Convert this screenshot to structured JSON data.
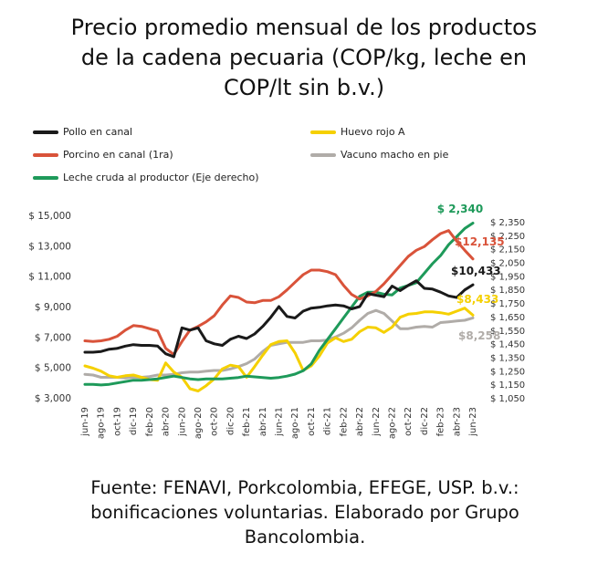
{
  "title_lines": [
    "Precio promedio mensual de los productos",
    "de la cadena pecuaria (COP/kg, leche en",
    "COP/lt sin b.v.)"
  ],
  "source": {
    "label": "Fuente:",
    "lines": [
      " FENAVI, Porkcolombia, EFEGE, USP. b.v.:",
      "bonificaciones voluntarias. Elaborado por Grupo",
      "Bancolombia."
    ]
  },
  "colors": {
    "pollo": "#1a1a1a",
    "huevo": "#f5d000",
    "porcino": "#d9533a",
    "vacuno": "#b0aca8",
    "leche": "#1e9a5a"
  },
  "chart_data": {
    "type": "line",
    "x": [
      "jun-19",
      "jul-19",
      "ago-19",
      "sep-19",
      "oct-19",
      "nov-19",
      "dic-19",
      "ene-20",
      "feb-20",
      "mar-20",
      "abr-20",
      "may-20",
      "jun-20",
      "jul-20",
      "ago-20",
      "sep-20",
      "oct-20",
      "nov-20",
      "dic-20",
      "ene-21",
      "feb-21",
      "mar-21",
      "abr-21",
      "may-21",
      "jun-21",
      "jul-21",
      "ago-21",
      "sep-21",
      "oct-21",
      "nov-21",
      "dic-21",
      "ene-22",
      "feb-22",
      "mar-22",
      "abr-22",
      "may-22",
      "jun-22",
      "jul-22",
      "ago-22",
      "sep-22",
      "oct-22",
      "nov-22",
      "dic-22",
      "ene-23",
      "feb-23",
      "mar-23",
      "abr-23",
      "may-23",
      "jun-23"
    ],
    "x_tick_labels": [
      "jun-19",
      "ago-19",
      "oct-19",
      "dic-19",
      "feb-20",
      "abr-20",
      "jun-20",
      "ago-20",
      "oct-20",
      "dic-20",
      "feb-21",
      "abr-21",
      "jun-21",
      "ago-21",
      "oct-21",
      "dic-21",
      "feb-22",
      "abr-22",
      "jun-22",
      "ago-22",
      "oct-22",
      "dic-22",
      "feb-23",
      "abr-23",
      "jun-23"
    ],
    "y_left": {
      "ticks": [
        "$ 3,000",
        "$ 5,000",
        "$ 7,000",
        "$ 9,000",
        "$ 11,000",
        "$ 13,000",
        "$ 15,000"
      ],
      "range": [
        3000,
        15000
      ]
    },
    "y_right": {
      "ticks": [
        "$ 1,050",
        "$ 1,150",
        "$ 1,250",
        "$ 1,350",
        "$ 1,450",
        "$ 1,550",
        "$ 1,650",
        "$ 1,750",
        "$ 1,850",
        "$ 1,950",
        "$ 2,050",
        "$ 2,150",
        "$ 2,250",
        "$ 2,350"
      ],
      "range": [
        1050,
        2350
      ]
    },
    "legend_position": "top",
    "series": [
      {
        "key": "pollo",
        "name": "Pollo en canal",
        "axis": "left",
        "values": [
          6000,
          6000,
          6050,
          6200,
          6250,
          6400,
          6500,
          6450,
          6450,
          6400,
          5900,
          5700,
          7600,
          7450,
          7600,
          6750,
          6550,
          6450,
          6850,
          7050,
          6900,
          7200,
          7700,
          8300,
          9000,
          8350,
          8250,
          8700,
          8900,
          8950,
          9050,
          9100,
          9050,
          8850,
          9000,
          9850,
          9750,
          9650,
          10350,
          10050,
          10400,
          10700,
          10200,
          10150,
          9950,
          9700,
          9600,
          10100,
          10433
        ]
      },
      {
        "key": "huevo",
        "name": "Huevo rojo A",
        "axis": "left",
        "values": [
          5100,
          4950,
          4750,
          4450,
          4350,
          4450,
          4500,
          4350,
          4200,
          4150,
          5300,
          4700,
          4350,
          3600,
          3450,
          3800,
          4250,
          4900,
          5150,
          5050,
          4350,
          5050,
          5800,
          6500,
          6700,
          6750,
          5950,
          4800,
          5100,
          5750,
          6600,
          6950,
          6700,
          6850,
          7350,
          7650,
          7600,
          7300,
          7650,
          8300,
          8500,
          8550,
          8650,
          8650,
          8600,
          8500,
          8700,
          8900,
          8433
        ]
      },
      {
        "key": "porcino",
        "name": "Porcino en canal (1ra)",
        "axis": "left",
        "values": [
          6750,
          6700,
          6750,
          6850,
          7050,
          7450,
          7750,
          7700,
          7550,
          7400,
          6250,
          5850,
          6700,
          7450,
          7700,
          8000,
          8400,
          9100,
          9700,
          9600,
          9300,
          9250,
          9400,
          9400,
          9650,
          10100,
          10600,
          11100,
          11400,
          11400,
          11300,
          11100,
          10400,
          9800,
          9500,
          9700,
          10000,
          10500,
          11100,
          11700,
          12300,
          12700,
          12950,
          13400,
          13800,
          14000,
          13300,
          12700,
          12135
        ]
      },
      {
        "key": "vacuno",
        "name": "Vacuno macho en pie",
        "axis": "left",
        "values": [
          4550,
          4500,
          4350,
          4350,
          4350,
          4300,
          4350,
          4350,
          4400,
          4500,
          4500,
          4550,
          4650,
          4700,
          4700,
          4750,
          4800,
          4800,
          4900,
          5050,
          5250,
          5550,
          6050,
          6450,
          6550,
          6650,
          6650,
          6650,
          6750,
          6750,
          6800,
          7000,
          7250,
          7600,
          8100,
          8550,
          8750,
          8550,
          8050,
          7550,
          7550,
          7650,
          7700,
          7650,
          7950,
          8000,
          8050,
          8100,
          8258
        ]
      },
      {
        "key": "leche",
        "name": "Leche cruda al productor (Eje derecho)",
        "axis": "right",
        "values": [
          1150,
          1150,
          1145,
          1150,
          1160,
          1170,
          1180,
          1180,
          1185,
          1190,
          1200,
          1210,
          1200,
          1190,
          1185,
          1190,
          1190,
          1190,
          1195,
          1200,
          1210,
          1205,
          1200,
          1195,
          1200,
          1210,
          1225,
          1250,
          1300,
          1400,
          1480,
          1560,
          1640,
          1720,
          1800,
          1830,
          1830,
          1815,
          1810,
          1860,
          1880,
          1900,
          1970,
          2040,
          2100,
          2180,
          2240,
          2300,
          2340
        ]
      }
    ],
    "end_labels": {
      "pollo": "$10,433",
      "porcino": "$12,135",
      "huevo": "$8,433",
      "vacuno": "$8,258",
      "leche": "$ 2,340"
    }
  }
}
